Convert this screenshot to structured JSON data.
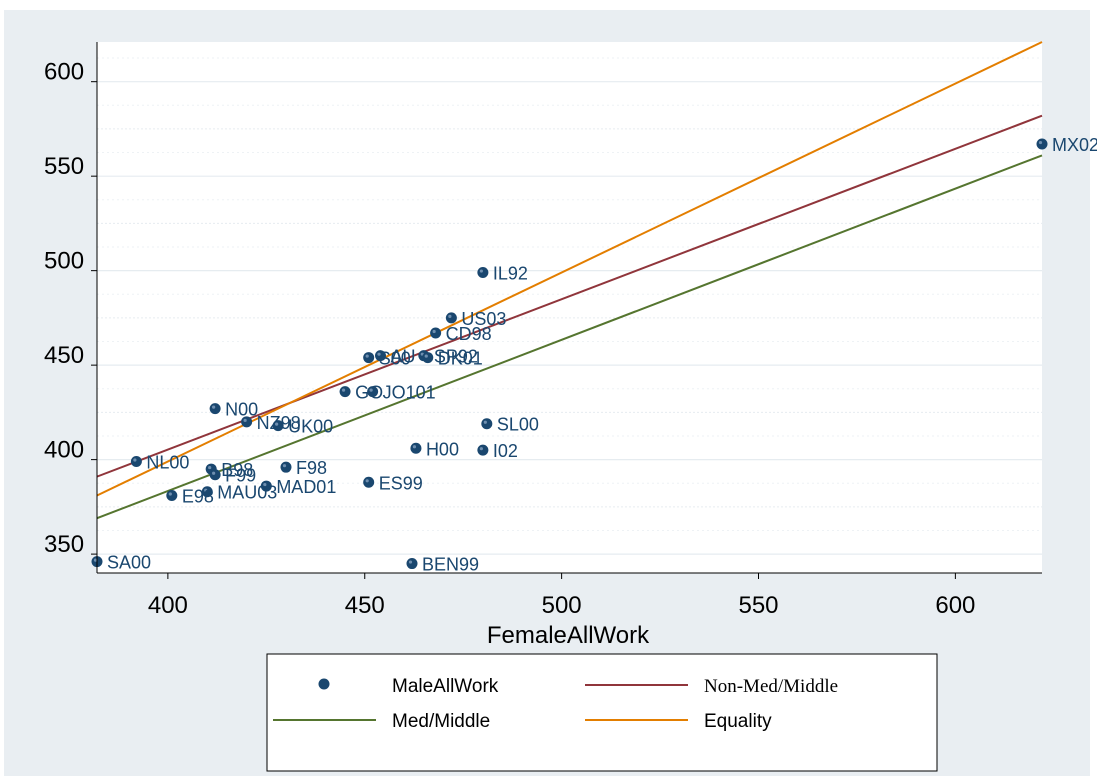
{
  "chart_data": {
    "type": "scatter",
    "title": "",
    "xlabel": "FemaleAllWork",
    "ylabel": "",
    "xlim": [
      382,
      622
    ],
    "ylim": [
      340,
      621
    ],
    "xticks": [
      400,
      450,
      500,
      550,
      600
    ],
    "yticks": [
      350,
      400,
      450,
      500,
      550,
      600
    ],
    "grid": true,
    "legend_position": "bottom",
    "colors": {
      "marker": "#1a476f",
      "non_med_middle": "#90353b",
      "med_middle": "#55752f",
      "equality": "#e37e00",
      "plot_bg": "#ffffff",
      "outer_bg": "#e9eef2",
      "grid": "#e6ecf0"
    },
    "series": [
      {
        "name": "MaleAllWork",
        "kind": "scatter",
        "points": [
          {
            "label": "MX02",
            "x": 622,
            "y": 567
          },
          {
            "label": "IL92",
            "x": 480,
            "y": 499
          },
          {
            "label": "US03",
            "x": 472,
            "y": 475
          },
          {
            "label": "CD98",
            "x": 468,
            "y": 467
          },
          {
            "label": "S00",
            "x": 451,
            "y": 454
          },
          {
            "label": "AU",
            "x": 454,
            "y": 455
          },
          {
            "label": "SP92",
            "x": 465,
            "y": 455
          },
          {
            "label": "DK01",
            "x": 466,
            "y": 454
          },
          {
            "label": "GO",
            "x": 445,
            "y": 436
          },
          {
            "label": "JO101",
            "x": 452,
            "y": 436
          },
          {
            "label": "N00",
            "x": 412,
            "y": 427
          },
          {
            "label": "NZ98",
            "x": 420,
            "y": 420
          },
          {
            "label": "UK00",
            "x": 428,
            "y": 418
          },
          {
            "label": "SL00",
            "x": 481,
            "y": 419
          },
          {
            "label": "H00",
            "x": 463,
            "y": 406
          },
          {
            "label": "I02",
            "x": 480,
            "y": 405
          },
          {
            "label": "NL00",
            "x": 392,
            "y": 399
          },
          {
            "label": "B98",
            "x": 411,
            "y": 395
          },
          {
            "label": "F99",
            "x": 412,
            "y": 392
          },
          {
            "label": "F98",
            "x": 430,
            "y": 396
          },
          {
            "label": "ES99",
            "x": 451,
            "y": 388
          },
          {
            "label": "MAD01",
            "x": 425,
            "y": 386
          },
          {
            "label": "MAU03",
            "x": 410,
            "y": 383
          },
          {
            "label": "E98",
            "x": 401,
            "y": 381
          },
          {
            "label": "SA00",
            "x": 382,
            "y": 346
          },
          {
            "label": "BEN99",
            "x": 462,
            "y": 345
          }
        ]
      },
      {
        "name": "Non-Med/Middle",
        "kind": "line",
        "x": [
          382,
          622
        ],
        "y": [
          391,
          582
        ]
      },
      {
        "name": "Med/Middle",
        "kind": "line",
        "x": [
          382,
          622
        ],
        "y": [
          369,
          561
        ]
      },
      {
        "name": "Equality",
        "kind": "line",
        "x": [
          382,
          622
        ],
        "y": [
          381,
          621
        ]
      }
    ]
  }
}
